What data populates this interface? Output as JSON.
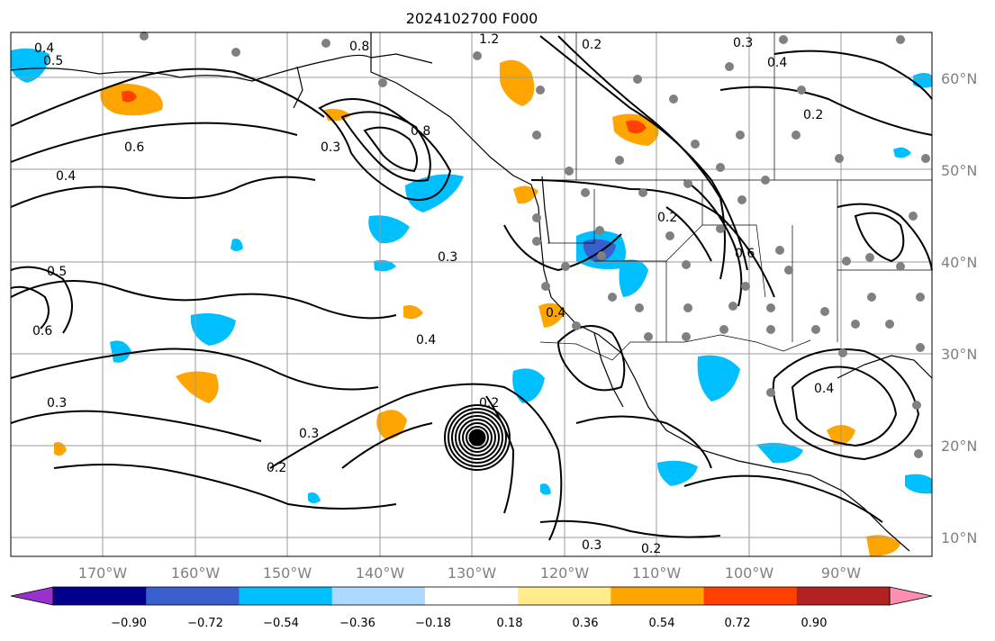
{
  "title": "2024102700 F000",
  "map": {
    "lon_labels": [
      "170°W",
      "160°W",
      "150°W",
      "140°W",
      "130°W",
      "120°W",
      "110°W",
      "100°W",
      "90°W"
    ],
    "lat_labels": [
      "60°N",
      "50°N",
      "40°N",
      "30°N",
      "20°N",
      "10°N"
    ],
    "gridlines": true
  },
  "colorbar": {
    "colors": [
      "#9932cc",
      "#00008b",
      "#3a5fcd",
      "#00bfff",
      "#add8ff",
      "#ffffff",
      "#ffec8b",
      "#ffa500",
      "#ff4000",
      "#b22222",
      "#ff8fae"
    ],
    "tick_labels": [
      "−0.90",
      "−0.72",
      "−0.54",
      "−0.36",
      "−0.18",
      "0.18",
      "0.36",
      "0.54",
      "0.72",
      "0.90"
    ],
    "extend": "both"
  },
  "contour_labels": [
    "0.4",
    "0.5",
    "0.6",
    "0.8",
    "1.2",
    "0.2",
    "0.3",
    "0.4",
    "0.2",
    "0.3",
    "0.4",
    "0.5",
    "0.6",
    "0.3",
    "0.2",
    "0.3",
    "0.4",
    "0.2",
    "0.3",
    "0.4",
    "0.2",
    "0.2",
    "0.3",
    "0.4",
    "0.8",
    "0.6"
  ]
}
